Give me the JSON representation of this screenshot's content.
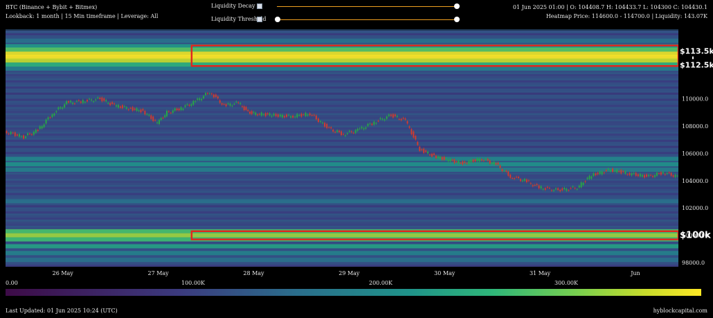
{
  "header": {
    "title": "BTC (Binance + Bybit + Bitmex)",
    "subtitle": "Lookback: 1 month | 15 Min timeframe | Leverage: All",
    "ohlc": "01 Jun 2025 01:00 | O: 104408.7 H: 104433.7 L: 104300 C: 104430.1",
    "heatmap_info": "Heatmap Price: 114600.0 - 114700.0 | Liquidity: 143.07K"
  },
  "controls": {
    "decay_label": "Liquidity Decay",
    "threshold_label": "Liquidity Threshold",
    "decay_value": 1.0,
    "threshold_value": 1.0
  },
  "colorbar": {
    "ticks": [
      "0.00",
      "100.00K",
      "200.00K",
      "300.00K"
    ],
    "colors": [
      "#3d0b47",
      "#3b3a7e",
      "#2a6e8c",
      "#1f938a",
      "#2fb77a",
      "#77cf4f",
      "#c8dc2b",
      "#fde725"
    ]
  },
  "footer": {
    "updated": "Last Updated: 01 Jun 2025 10:24 (UTC)",
    "brand": "hyblockcapital.com"
  },
  "chart_data": {
    "type": "heatmap",
    "ylim": [
      97700,
      115000
    ],
    "y_ticks": [
      "98000.0",
      "100000.0",
      "102000.0",
      "104000.0",
      "106000.0",
      "108000.0",
      "110000.0"
    ],
    "y_tick_values": [
      98000,
      100000,
      102000,
      104000,
      106000,
      108000,
      110000
    ],
    "x_ticks": [
      "26 May",
      "27 May",
      "28 May",
      "29 May",
      "30 May",
      "31 May",
      "Jun"
    ],
    "x_tick_values": [
      1.0,
      2.0,
      3.0,
      4.0,
      5.0,
      6.0,
      7.0
    ],
    "xlim": [
      0.4,
      7.45
    ],
    "price_series": {
      "name": "",
      "x": [
        0.4,
        0.6,
        0.75,
        0.9,
        1.05,
        1.2,
        1.4,
        1.55,
        1.7,
        1.85,
        2.0,
        2.1,
        2.25,
        2.4,
        2.55,
        2.7,
        2.85,
        2.95,
        3.05,
        3.2,
        3.4,
        3.6,
        3.8,
        3.95,
        4.1,
        4.25,
        4.45,
        4.6,
        4.75,
        4.9,
        5.05,
        5.2,
        5.4,
        5.55,
        5.7,
        5.85,
        6.0,
        6.2,
        6.4,
        6.55,
        6.75,
        6.95,
        7.15,
        7.3,
        7.45
      ],
      "values": [
        107600,
        107200,
        107700,
        108900,
        109700,
        109800,
        110000,
        109500,
        109300,
        109100,
        108200,
        109000,
        109300,
        109800,
        110500,
        109500,
        109700,
        109000,
        108900,
        108800,
        108700,
        108900,
        107800,
        107400,
        107700,
        108200,
        108800,
        108400,
        106300,
        105800,
        105500,
        105300,
        105600,
        105200,
        104300,
        104000,
        103500,
        103300,
        103500,
        104400,
        104800,
        104500,
        104300,
        104600,
        104300
      ]
    },
    "liquidity_bands": [
      {
        "price": 114250,
        "level": 0.3
      },
      {
        "price": 113850,
        "level": 0.45
      },
      {
        "price": 113600,
        "level": 0.65
      },
      {
        "price": 113300,
        "level": 0.95
      },
      {
        "price": 113050,
        "level": 1.0
      },
      {
        "price": 112800,
        "level": 0.85
      },
      {
        "price": 112500,
        "level": 0.55
      },
      {
        "price": 112200,
        "level": 0.35
      },
      {
        "price": 105600,
        "level": 0.38
      },
      {
        "price": 105200,
        "level": 0.42
      },
      {
        "price": 104800,
        "level": 0.35
      },
      {
        "price": 102500,
        "level": 0.3
      },
      {
        "price": 100300,
        "level": 0.62
      },
      {
        "price": 100000,
        "level": 0.78
      },
      {
        "price": 99700,
        "level": 0.6
      },
      {
        "price": 99200,
        "level": 0.48
      },
      {
        "price": 98700,
        "level": 0.36
      },
      {
        "price": 98200,
        "level": 0.3
      }
    ],
    "annotations": [
      {
        "text": "$113.5k",
        "price": 113500
      },
      {
        "text": "$112.5k",
        "price": 112500
      },
      {
        "text": "$100k",
        "price": 100000
      }
    ],
    "highlight_boxes": [
      {
        "x_start": 2.35,
        "price_low": 112400,
        "price_high": 113900
      },
      {
        "x_start": 2.35,
        "price_low": 99700,
        "price_high": 100300
      }
    ]
  }
}
